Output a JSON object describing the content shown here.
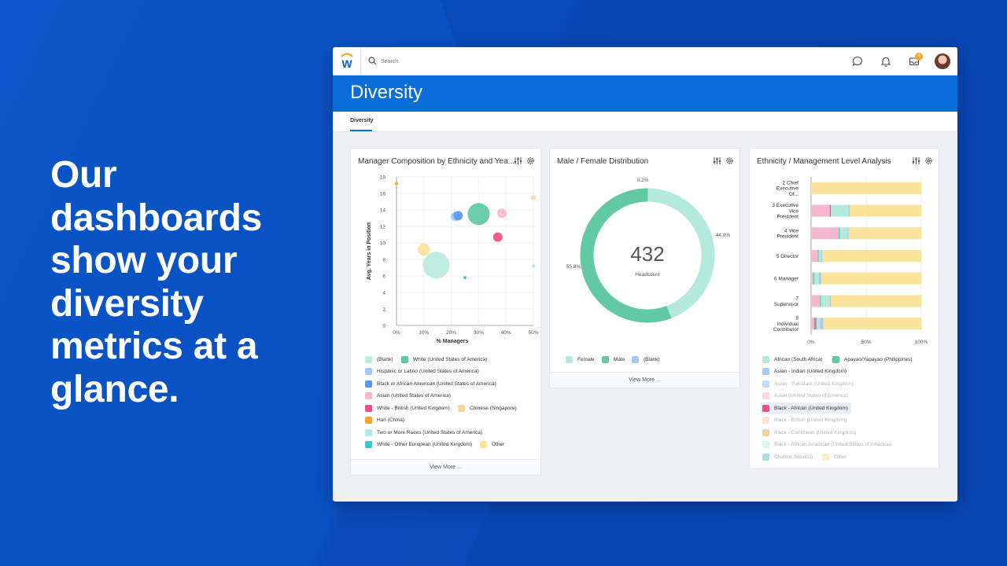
{
  "headline": "Our dashboards show your diversity metrics at a glance.",
  "search": {
    "placeholder": "Search"
  },
  "notifications": {
    "inbox_count": "9"
  },
  "page": {
    "title": "Diversity",
    "tab": "Diversity"
  },
  "colors": {
    "header_blue": "#0a6ed8",
    "background_blue": "#0a4fc0"
  },
  "cards": {
    "bubble": {
      "title": "Manager Composition by Ethnicity and Yea...",
      "view_more": "View More ...",
      "legend": [
        {
          "label": "(Blank)",
          "color": "#b9ebdd"
        },
        {
          "label": "White (United States of America)",
          "color": "#5fc9a4"
        },
        {
          "label": "Hispanic or Latino (United States of America)",
          "color": "#a8c8f4"
        },
        {
          "label": "Black or African American (United States of America)",
          "color": "#5b97ef"
        },
        {
          "label": "Asian (United States of America)",
          "color": "#f6b8cf"
        },
        {
          "label": "White - British (United Kingdom)",
          "color": "#ec4f86"
        },
        {
          "label": "Chinese (Singapore)",
          "color": "#f7d7a4"
        },
        {
          "label": "Han (China)",
          "color": "#f2a536"
        },
        {
          "label": "Two or More Races (United States of America)",
          "color": "#b4e8e3"
        },
        {
          "label": "White - Other European (United Kingdom)",
          "color": "#3fc3cf"
        },
        {
          "label": "Other",
          "color": "#fae39a"
        }
      ]
    },
    "donut": {
      "title": "Male / Female Distribution",
      "center_value": "432",
      "center_label": "Headcount",
      "view_more": "View More ...",
      "legend": [
        {
          "label": "Female",
          "color": "#b4eadc"
        },
        {
          "label": "Male",
          "color": "#62c9a5"
        },
        {
          "label": "(Blank)",
          "color": "#a8c8f4"
        }
      ]
    },
    "bars": {
      "title": "Ethnicity / Management Level Analysis",
      "legend": [
        {
          "label": "African (South Africa)",
          "color": "#b4eadc",
          "dim": false
        },
        {
          "label": "Apayao/Yapayao (Philippines)",
          "color": "#5fc9a4",
          "dim": false
        },
        {
          "label": "Asian - Indian (United Kingdom)",
          "color": "#a8c8f4",
          "dim": false
        },
        {
          "label": "Asian - Pakistani (United Kingdom)",
          "color": "#c5d8f6",
          "dim": true
        },
        {
          "label": "Asian (United States of America)",
          "color": "#f9d9e4",
          "dim": true
        },
        {
          "label": "Black - African (United Kingdom)",
          "color": "#ec4f86",
          "dim": false,
          "selected": true
        },
        {
          "label": "Black - British (United Kingdom)",
          "color": "#fce5d6",
          "dim": true
        },
        {
          "label": "Black - Caribbean (United Kingdom)",
          "color": "#f3cfa4",
          "dim": true
        },
        {
          "label": "Black - African American (United States of America)",
          "color": "#def5f6",
          "dim": true
        },
        {
          "label": "Chatino (Mexico)",
          "color": "#a9dfe3",
          "dim": true
        },
        {
          "label": "Other",
          "color": "#fdf0c4",
          "dim": true
        }
      ]
    }
  },
  "chart_data": [
    {
      "type": "scatter",
      "xlabel": "% Managers",
      "ylabel": "Avg. Years in Position",
      "xlim": [
        0,
        50
      ],
      "ylim": [
        0,
        18
      ],
      "x_ticks": [
        "0%",
        "10%",
        "20%",
        "30%",
        "40%",
        "50%"
      ],
      "y_ticks": [
        "0",
        "2",
        "4",
        "6",
        "8",
        "10",
        "12",
        "14",
        "16",
        "18"
      ],
      "points": [
        {
          "series": "Han (China)",
          "x": 0,
          "y": 17.2,
          "r": 2,
          "color": "#f2a536"
        },
        {
          "series": "Other",
          "x": 10,
          "y": 9.2,
          "r": 8,
          "color": "#fae39a"
        },
        {
          "series": "(Blank)",
          "x": 14.5,
          "y": 7.3,
          "r": 17,
          "color": "#b9ebdd"
        },
        {
          "series": "Hispanic or Latino (United States of America)",
          "x": 21.5,
          "y": 13.2,
          "r": 6,
          "color": "#a8c8f4"
        },
        {
          "series": "Black or African American (United States of America)",
          "x": 22.5,
          "y": 13.3,
          "r": 6,
          "color": "#5b97ef"
        },
        {
          "series": "White - Other European (United Kingdom)",
          "x": 25,
          "y": 5.8,
          "r": 2,
          "color": "#3fc3cf"
        },
        {
          "series": "White (United States of America)",
          "x": 30,
          "y": 13.5,
          "r": 14,
          "color": "#5fc9a4"
        },
        {
          "series": "Asian (United States of America)",
          "x": 38.5,
          "y": 13.6,
          "r": 6,
          "color": "#f6b8cf"
        },
        {
          "series": "White - British (United Kingdom)",
          "x": 37,
          "y": 10.7,
          "r": 6,
          "color": "#ec4f86"
        },
        {
          "series": "Chinese (Singapore)",
          "x": 50,
          "y": 15.5,
          "r": 3,
          "color": "#f7d7a4"
        },
        {
          "series": "Two or More Races (United States of America)",
          "x": 50,
          "y": 7.2,
          "r": 2,
          "color": "#b4e8e3"
        }
      ]
    },
    {
      "type": "pie",
      "labels": [
        "Female",
        "Male",
        "(Blank)"
      ],
      "values": [
        44.0,
        55.8,
        0.2
      ],
      "value_labels": [
        "44.0%",
        "55.8%",
        "0.2%"
      ],
      "colors": [
        "#b4eadc",
        "#62c9a5",
        "#a8c8f4"
      ]
    },
    {
      "type": "bar",
      "stacked": true,
      "orientation": "horizontal",
      "categories": [
        "2 Chief Executive Of...",
        "3 Executive Vice President",
        "4 Vice President",
        "5 Director",
        "6 Manager",
        "7 Supervisor",
        "8 Individual Contributor"
      ],
      "x_ticks": [
        "0%",
        "50%",
        "100%"
      ],
      "xlim": [
        0,
        100
      ],
      "series": [
        {
          "name": "Asian (United States of America)",
          "color": "#f6b8cf",
          "values": [
            0,
            17,
            25,
            6,
            2,
            8,
            3
          ]
        },
        {
          "name": "Black - African (United Kingdom)",
          "color": "#ec4f86",
          "values": [
            0,
            1,
            0,
            0,
            0,
            0,
            1
          ]
        },
        {
          "name": "Apayao/Yapayao (Philippines)",
          "color": "#5fc9a4",
          "values": [
            0,
            0,
            1,
            1,
            1,
            1,
            1
          ]
        },
        {
          "name": "African (South Africa)",
          "color": "#b4eadc",
          "values": [
            0,
            16,
            7,
            2,
            4,
            8,
            3
          ]
        },
        {
          "name": "Asian - Indian (United Kingdom)",
          "color": "#a8c8f4",
          "values": [
            0,
            1,
            1,
            1,
            2,
            1,
            3
          ]
        },
        {
          "name": "Other",
          "color": "#fae39a",
          "values": [
            100,
            65,
            66,
            90,
            91,
            82,
            89
          ]
        }
      ]
    }
  ]
}
